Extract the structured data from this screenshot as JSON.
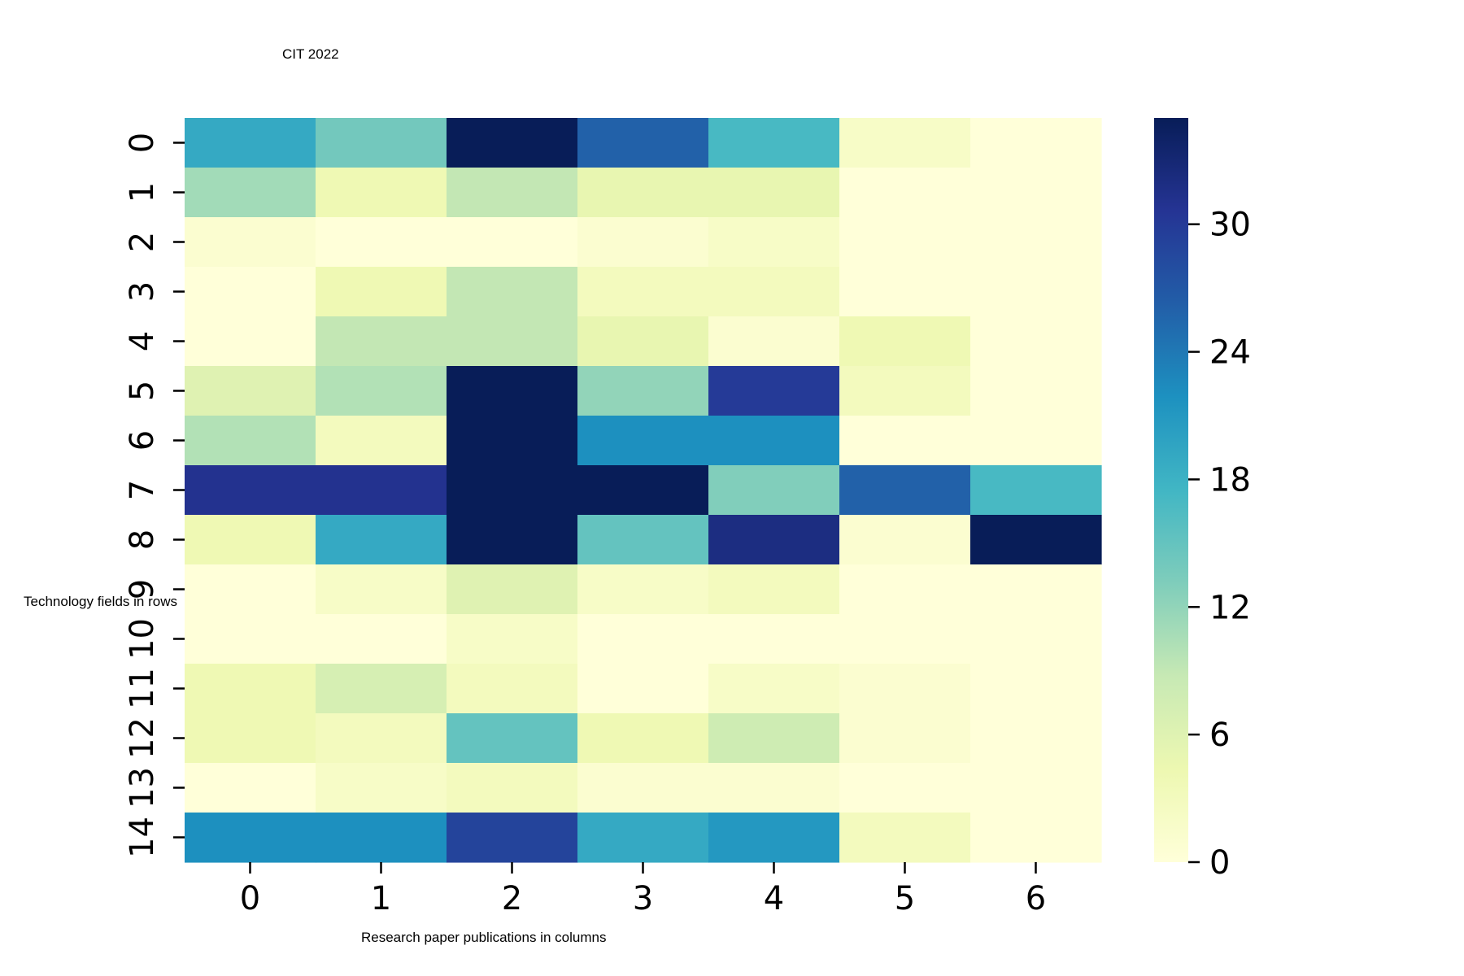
{
  "chart_data": {
    "type": "heatmap",
    "title": "CIT  2022",
    "xlabel": "Research paper publications in columns",
    "ylabel": "Technology fields in rows",
    "x_categories": [
      "0",
      "1",
      "2",
      "3",
      "4",
      "5",
      "6"
    ],
    "y_categories": [
      "0",
      "1",
      "2",
      "3",
      "4",
      "5",
      "6",
      "7",
      "8",
      "9",
      "10",
      "11",
      "12",
      "13",
      "14"
    ],
    "values": [
      [
        19,
        14,
        35,
        26,
        17,
        2,
        0
      ],
      [
        11,
        4,
        9,
        5,
        5,
        0,
        0
      ],
      [
        1,
        0,
        0,
        1,
        2,
        0,
        0
      ],
      [
        0,
        4,
        9,
        3,
        3,
        0,
        0
      ],
      [
        0,
        9,
        9,
        5,
        1,
        4,
        0
      ],
      [
        6,
        10,
        35,
        12,
        30,
        3,
        0
      ],
      [
        10,
        3,
        35,
        22,
        22,
        0,
        0
      ],
      [
        31,
        31,
        35,
        35,
        13,
        26,
        17
      ],
      [
        4,
        19,
        35,
        15,
        32,
        1,
        35
      ],
      [
        0,
        2,
        6,
        2,
        3,
        0,
        0
      ],
      [
        0,
        0,
        2,
        0,
        0,
        0,
        0
      ],
      [
        4,
        7,
        3,
        0,
        2,
        1,
        0
      ],
      [
        4,
        3,
        15,
        4,
        8,
        1,
        0
      ],
      [
        0,
        2,
        3,
        1,
        1,
        0,
        0
      ],
      [
        22,
        22,
        29,
        19,
        21,
        3,
        0
      ]
    ],
    "colorbar": {
      "min": 0,
      "max": 35,
      "ticks": [
        0,
        6,
        12,
        18,
        24,
        30
      ],
      "colormap": [
        "#ffffd9",
        "#edf8b1",
        "#c7e9b4",
        "#7fcdbb",
        "#41b6c4",
        "#1d91c0",
        "#225ea8",
        "#253494",
        "#081d58"
      ]
    },
    "grid": false
  }
}
